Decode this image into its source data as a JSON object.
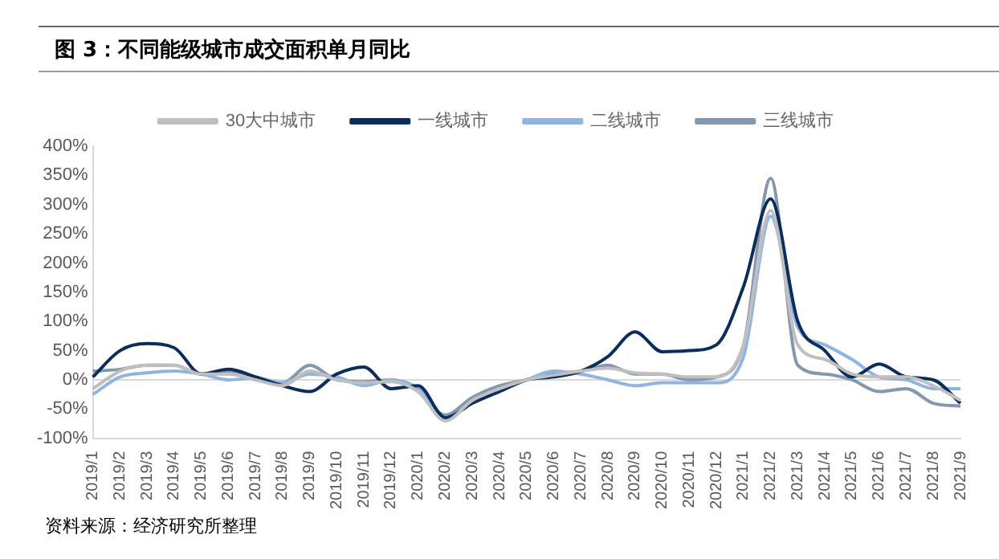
{
  "chart_data": {
    "type": "line",
    "title": "图 3：不同能级城市成交面积单月同比",
    "categories": [
      "2019/1",
      "2019/2",
      "2019/3",
      "2019/4",
      "2019/5",
      "2019/6",
      "2019/7",
      "2019/8",
      "2019/9",
      "2019/10",
      "2019/11",
      "2019/12",
      "2020/1",
      "2020/2",
      "2020/3",
      "2020/4",
      "2020/5",
      "2020/6",
      "2020/7",
      "2020/8",
      "2020/9",
      "2020/10",
      "2020/11",
      "2020/12",
      "2021/1",
      "2021/2",
      "2021/3",
      "2021/4",
      "2021/5",
      "2021/6",
      "2021/7",
      "2021/8",
      "2021/9"
    ],
    "series": [
      {
        "name": "30大中城市",
        "color": "#bfbfbf",
        "values": [
          -15,
          15,
          25,
          25,
          10,
          10,
          0,
          -10,
          15,
          0,
          -5,
          -3,
          -20,
          -70,
          -35,
          -15,
          0,
          8,
          15,
          20,
          12,
          10,
          5,
          5,
          60,
          290,
          60,
          35,
          10,
          5,
          5,
          -10,
          -35
        ]
      },
      {
        "name": "一线城市",
        "color": "#0b2d5b",
        "values": [
          5,
          50,
          62,
          55,
          10,
          18,
          5,
          -10,
          -20,
          10,
          22,
          -15,
          -10,
          -65,
          -40,
          -20,
          0,
          5,
          15,
          40,
          82,
          48,
          50,
          60,
          160,
          310,
          100,
          50,
          5,
          27,
          5,
          0,
          -40
        ]
      },
      {
        "name": "二线城市",
        "color": "#8db4e2",
        "values": [
          -25,
          5,
          12,
          15,
          10,
          0,
          3,
          -5,
          10,
          5,
          -10,
          0,
          -15,
          -65,
          -40,
          -20,
          0,
          15,
          10,
          0,
          -10,
          -5,
          -5,
          -5,
          40,
          280,
          90,
          60,
          35,
          5,
          0,
          -15,
          -15
        ]
      },
      {
        "name": "三线城市",
        "color": "#8497b0",
        "values": [
          15,
          18,
          25,
          25,
          10,
          15,
          5,
          -5,
          25,
          0,
          -3,
          0,
          -20,
          -60,
          -30,
          -10,
          0,
          10,
          15,
          25,
          10,
          10,
          0,
          5,
          60,
          345,
          25,
          10,
          0,
          -20,
          -15,
          -40,
          -45
        ]
      }
    ],
    "ylim": [
      -100,
      400
    ],
    "yticks": [
      {
        "value": -100,
        "label": "-100%"
      },
      {
        "value": -50,
        "label": "-50%"
      },
      {
        "value": 0,
        "label": "0%"
      },
      {
        "value": 50,
        "label": "50%"
      },
      {
        "value": 100,
        "label": "100%"
      },
      {
        "value": 150,
        "label": "150%"
      },
      {
        "value": 200,
        "label": "200%"
      },
      {
        "value": 250,
        "label": "250%"
      },
      {
        "value": 300,
        "label": "300%"
      },
      {
        "value": 350,
        "label": "350%"
      },
      {
        "value": 400,
        "label": "400%"
      }
    ],
    "grid": false,
    "ref_lines": [
      {
        "axis": "y",
        "value": 0,
        "color": "#d9d9d9"
      }
    ],
    "legend": "top",
    "marker": "none",
    "line_style": "solid",
    "annotations": [
      "资料来源：经济研究所整理"
    ]
  }
}
